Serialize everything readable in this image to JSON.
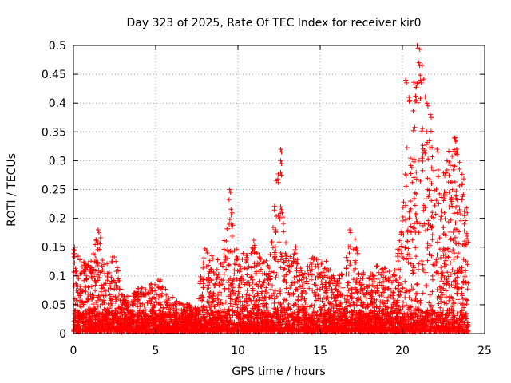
{
  "chart_data": {
    "type": "scatter",
    "title": "Day 323 of 2025, Rate Of TEC Index for receiver kir0",
    "xlabel": "GPS time / hours",
    "ylabel": "ROTI / TECUs",
    "xlim": [
      0,
      25
    ],
    "ylim": [
      0,
      0.5
    ],
    "x_ticks": [
      0,
      5,
      10,
      15,
      20,
      25
    ],
    "x_tick_labels": [
      "0",
      "5",
      "10",
      "15",
      "20",
      "25"
    ],
    "y_ticks": [
      0,
      0.05,
      0.1,
      0.15,
      0.2,
      0.25,
      0.3,
      0.35,
      0.4,
      0.45,
      0.5
    ],
    "y_tick_labels": [
      "0",
      "0.05",
      "0.1",
      "0.15",
      "0.2",
      "0.25",
      "0.3",
      "0.35",
      "0.4",
      "0.45",
      "0.5"
    ],
    "grid": true,
    "marker": "plus",
    "color": "#ff0000",
    "envelope": {
      "x": [
        0,
        0.5,
        1,
        1.5,
        2,
        2.5,
        3,
        3.5,
        4,
        4.5,
        5,
        5.5,
        6,
        6.5,
        7,
        7.5,
        8,
        8.5,
        9,
        9.5,
        10,
        10.5,
        11,
        11.5,
        12,
        12.5,
        13,
        13.5,
        14,
        14.5,
        15,
        15.5,
        16,
        16.5,
        17,
        17.5,
        18,
        18.5,
        19,
        19.5,
        20,
        20.5,
        21,
        21.5,
        22,
        22.5,
        23,
        23.5,
        24
      ],
      "y_max": [
        0.16,
        0.13,
        0.12,
        0.18,
        0.12,
        0.14,
        0.07,
        0.06,
        0.08,
        0.07,
        0.1,
        0.09,
        0.06,
        0.05,
        0.05,
        0.04,
        0.16,
        0.13,
        0.12,
        0.25,
        0.13,
        0.14,
        0.17,
        0.12,
        0.14,
        0.32,
        0.13,
        0.15,
        0.1,
        0.14,
        0.13,
        0.12,
        0.1,
        0.13,
        0.18,
        0.11,
        0.1,
        0.12,
        0.11,
        0.1,
        0.2,
        0.44,
        0.5,
        0.4,
        0.3,
        0.29,
        0.34,
        0.34,
        0.2
      ]
    },
    "highlights": [
      {
        "x": 1.5,
        "y": 0.18
      },
      {
        "x": 9.5,
        "y": 0.25
      },
      {
        "x": 9.6,
        "y": 0.19
      },
      {
        "x": 12.6,
        "y": 0.32
      },
      {
        "x": 12.6,
        "y": 0.3
      },
      {
        "x": 12.6,
        "y": 0.28
      },
      {
        "x": 12.6,
        "y": 0.22
      },
      {
        "x": 16.8,
        "y": 0.18
      },
      {
        "x": 20.2,
        "y": 0.44
      },
      {
        "x": 20.4,
        "y": 0.41
      },
      {
        "x": 20.9,
        "y": 0.5
      },
      {
        "x": 21.0,
        "y": 0.47
      },
      {
        "x": 21.1,
        "y": 0.44
      },
      {
        "x": 21.5,
        "y": 0.4
      },
      {
        "x": 21.7,
        "y": 0.38
      },
      {
        "x": 22.1,
        "y": 0.32
      },
      {
        "x": 23.2,
        "y": 0.34
      },
      {
        "x": 23.3,
        "y": 0.32
      }
    ]
  }
}
